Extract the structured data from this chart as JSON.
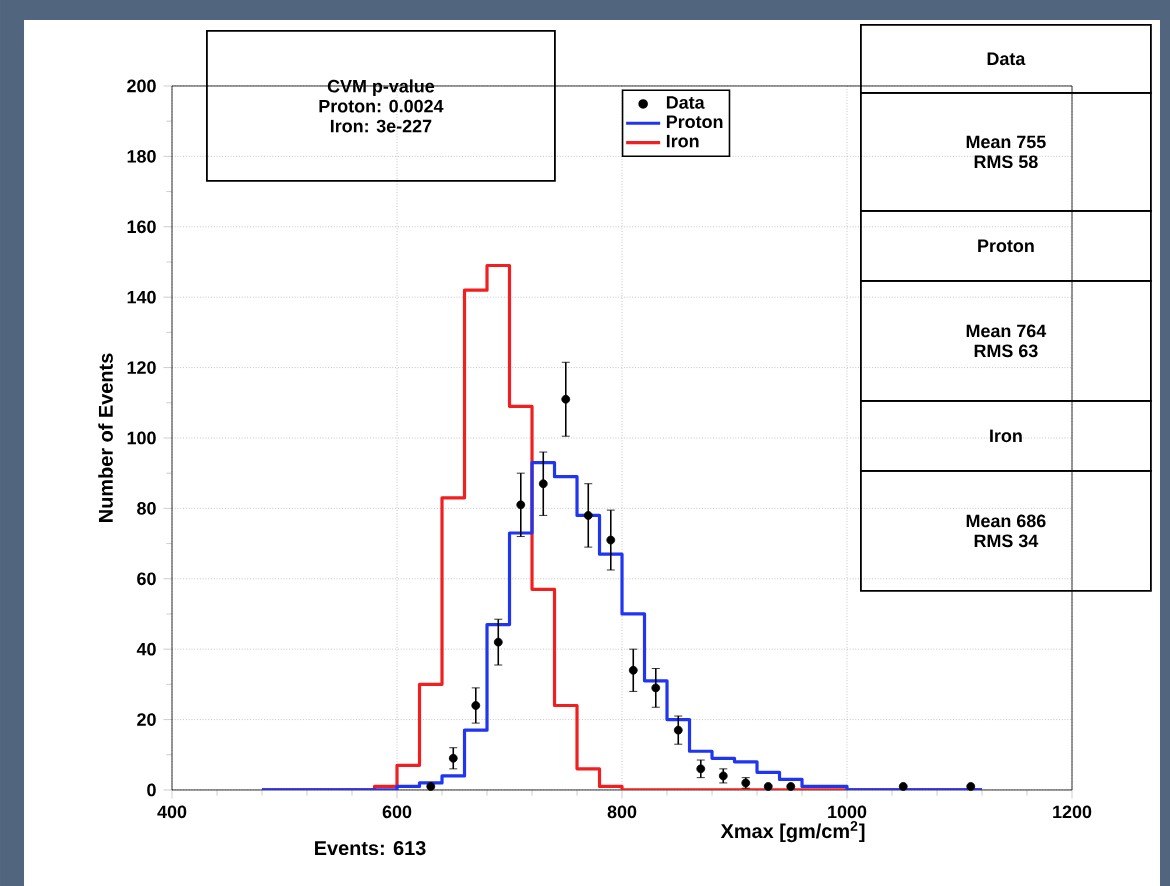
{
  "chart_data": {
    "type": "histogram",
    "xlabel": "Xmax  [gm/cm$^{2}$]",
    "ylabel": "Number of Events",
    "bins": [
      480,
      500,
      520,
      540,
      560,
      580,
      600,
      620,
      640,
      660,
      680,
      700,
      720,
      740,
      760,
      780,
      800,
      820,
      840,
      860,
      880,
      900,
      920,
      940,
      960,
      980,
      1000,
      1020,
      1040,
      1060,
      1080,
      1100,
      1120
    ],
    "series": [
      {
        "name": "Data",
        "type": "scatter",
        "color": "#000000",
        "x": [
          630,
          650,
          670,
          690,
          710,
          730,
          750,
          770,
          790,
          810,
          830,
          850,
          870,
          890,
          910,
          930,
          950,
          1050,
          1110
        ],
        "values": [
          1,
          9,
          24,
          42,
          81,
          87,
          111,
          78,
          71,
          34,
          29,
          17,
          6,
          4,
          2,
          1,
          1,
          1,
          1
        ],
        "errors": [
          null,
          3,
          5,
          6.5,
          9,
          9,
          10.5,
          9,
          8.5,
          6,
          5.5,
          4,
          2.5,
          2,
          1.5,
          null,
          null,
          null,
          null
        ]
      },
      {
        "name": "Proton",
        "color": "#1f35f0",
        "values": [
          0,
          0,
          0,
          0,
          0,
          0,
          1,
          2,
          4,
          17,
          47,
          73,
          93,
          89,
          78,
          67,
          50,
          31,
          20,
          11,
          9,
          8,
          5,
          3,
          1,
          1,
          0,
          0,
          0,
          0,
          0,
          0
        ]
      },
      {
        "name": "Iron",
        "color": "#f02020",
        "values": [
          0,
          0,
          0,
          0,
          0,
          1,
          7,
          30,
          83,
          142,
          149,
          109,
          57,
          24,
          6,
          1,
          0,
          0,
          0,
          0,
          0,
          0,
          0,
          0,
          0,
          0,
          0,
          0,
          0,
          0,
          0,
          0
        ]
      }
    ],
    "xlim": [
      400,
      1200
    ],
    "xticks": [
      400,
      600,
      800,
      1000,
      1200
    ],
    "ylim": [
      0,
      200
    ],
    "yticks": [
      0,
      20,
      40,
      60,
      80,
      100,
      120,
      140,
      160,
      180,
      200
    ],
    "grid": true,
    "legend": "top",
    "annotations": [
      "CVM p-value",
      "Proton:  0.0024",
      "Iron:     3e-227",
      "Data",
      "Mean  755",
      "RMS 58",
      "Proton",
      "Mean  764",
      "RMS  63",
      "Iron",
      "Mean  686",
      "RMS 34",
      "Events: 613"
    ]
  }
}
